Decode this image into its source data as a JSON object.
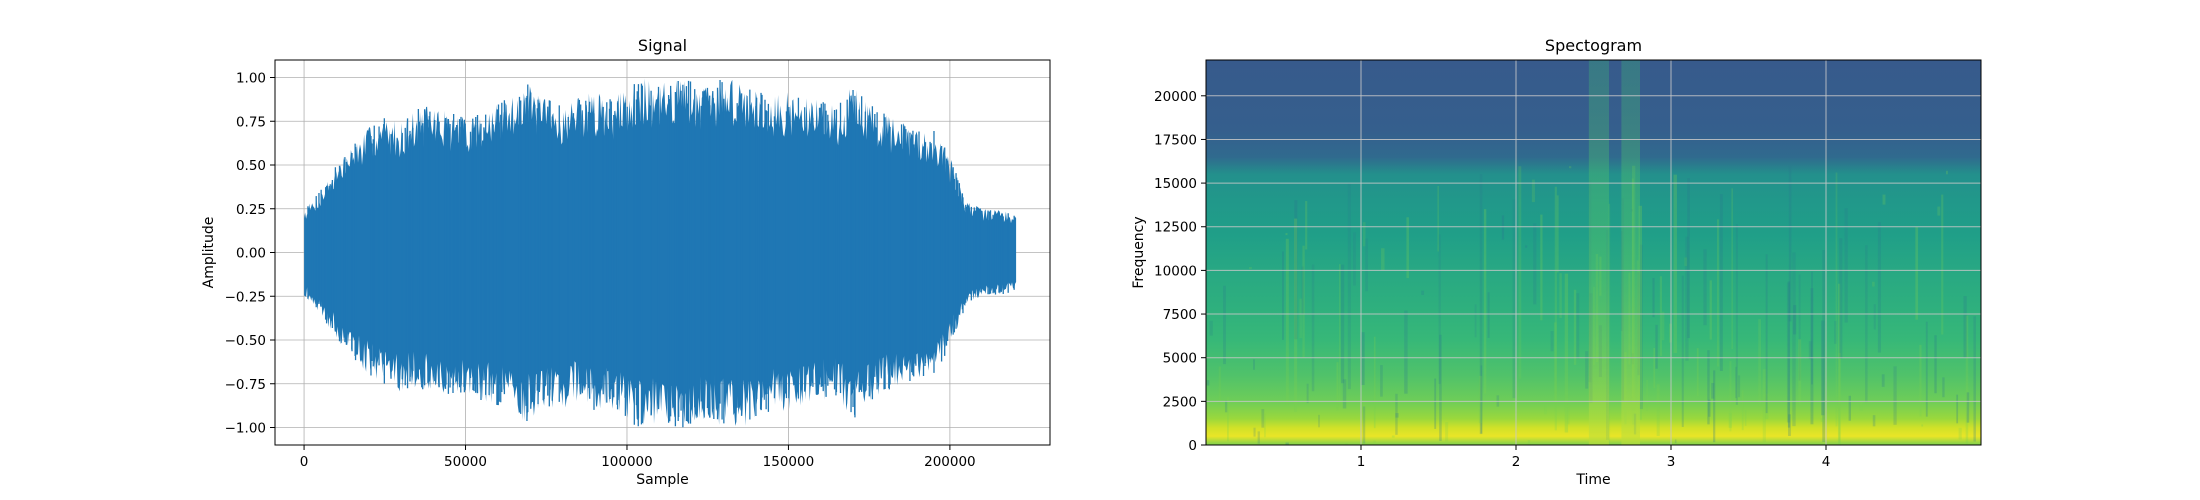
{
  "charts": [
    {
      "type": "line",
      "title": "Signal",
      "xlabel": "Sample",
      "ylabel": "Amplitude",
      "xlim": [
        -9000,
        231000
      ],
      "ylim": [
        -1.1,
        1.1
      ],
      "xticks": [
        0,
        50000,
        100000,
        150000,
        200000
      ],
      "xtick_labels": [
        "0",
        "50000",
        "100000",
        "150000",
        "200000"
      ],
      "yticks": [
        -1.0,
        -0.75,
        -0.5,
        -0.25,
        0.0,
        0.25,
        0.5,
        0.75,
        1.0
      ],
      "ytick_labels": [
        "−1.00",
        "−0.75",
        "−0.50",
        "−0.25",
        "0.00",
        "0.25",
        "0.50",
        "0.75",
        "1.00"
      ],
      "grid": true,
      "line_color": "#1f77b4",
      "sample_count": 220500,
      "envelope_x": [
        0,
        5000,
        10000,
        15000,
        20000,
        25000,
        30000,
        35000,
        40000,
        45000,
        50000,
        55000,
        60000,
        65000,
        67000,
        70000,
        75000,
        80000,
        85000,
        90000,
        95000,
        100000,
        103000,
        105000,
        110000,
        113000,
        116000,
        120000,
        125000,
        130000,
        133000,
        136000,
        140000,
        145000,
        150000,
        155000,
        160000,
        165000,
        170000,
        175000,
        180000,
        185000,
        190000,
        195000,
        200000,
        205000,
        210000,
        215000,
        220000
      ],
      "envelope_upper": [
        0.25,
        0.35,
        0.5,
        0.62,
        0.72,
        0.78,
        0.75,
        0.82,
        0.85,
        0.8,
        0.78,
        0.8,
        0.85,
        0.9,
        1.0,
        0.95,
        0.88,
        0.85,
        0.9,
        0.92,
        0.88,
        0.95,
        1.0,
        1.0,
        0.95,
        1.0,
        1.0,
        1.0,
        0.95,
        1.0,
        1.0,
        1.0,
        0.95,
        0.9,
        0.92,
        0.88,
        0.9,
        0.82,
        0.98,
        0.85,
        0.8,
        0.75,
        0.7,
        0.72,
        0.55,
        0.3,
        0.25,
        0.25,
        0.22
      ],
      "envelope_lower": [
        -0.25,
        -0.35,
        -0.5,
        -0.6,
        -0.7,
        -0.75,
        -0.8,
        -0.78,
        -0.82,
        -0.85,
        -0.8,
        -0.85,
        -0.88,
        -0.9,
        -1.0,
        -0.95,
        -0.88,
        -0.9,
        -0.85,
        -0.92,
        -0.9,
        -0.95,
        -1.0,
        -1.0,
        -0.98,
        -1.0,
        -1.0,
        -1.0,
        -0.95,
        -1.0,
        -1.0,
        -1.0,
        -0.95,
        -0.92,
        -0.9,
        -0.88,
        -0.85,
        -0.82,
        -0.98,
        -0.85,
        -0.8,
        -0.75,
        -0.72,
        -0.7,
        -0.55,
        -0.3,
        -0.25,
        -0.25,
        -0.22
      ]
    },
    {
      "type": "heatmap",
      "title": "Spectogram",
      "xlabel": "Time",
      "ylabel": "Frequency",
      "xlim": [
        0.0,
        5.0
      ],
      "ylim": [
        0,
        22050
      ],
      "xticks": [
        1,
        2,
        3,
        4
      ],
      "xtick_labels": [
        "1",
        "2",
        "3",
        "4"
      ],
      "yticks": [
        0,
        2500,
        5000,
        7500,
        10000,
        12500,
        15000,
        17500,
        20000
      ],
      "ytick_labels": [
        "0",
        "2500",
        "5000",
        "7500",
        "10000",
        "12500",
        "15000",
        "17500",
        "20000"
      ],
      "grid": true,
      "colormap": "viridis",
      "frequency_profile": {
        "frequency": [
          0,
          500,
          1000,
          1500,
          2500,
          4000,
          6000,
          8000,
          10000,
          12000,
          14000,
          15500,
          16500,
          18000,
          22050
        ],
        "intensity": [
          0.8,
          0.97,
          0.93,
          0.85,
          0.78,
          0.72,
          0.67,
          0.63,
          0.6,
          0.56,
          0.53,
          0.5,
          0.34,
          0.3,
          0.28
        ]
      },
      "high_energy_time_bands": [
        {
          "start": 2.47,
          "end": 2.6
        },
        {
          "start": 2.68,
          "end": 2.8
        }
      ]
    }
  ]
}
